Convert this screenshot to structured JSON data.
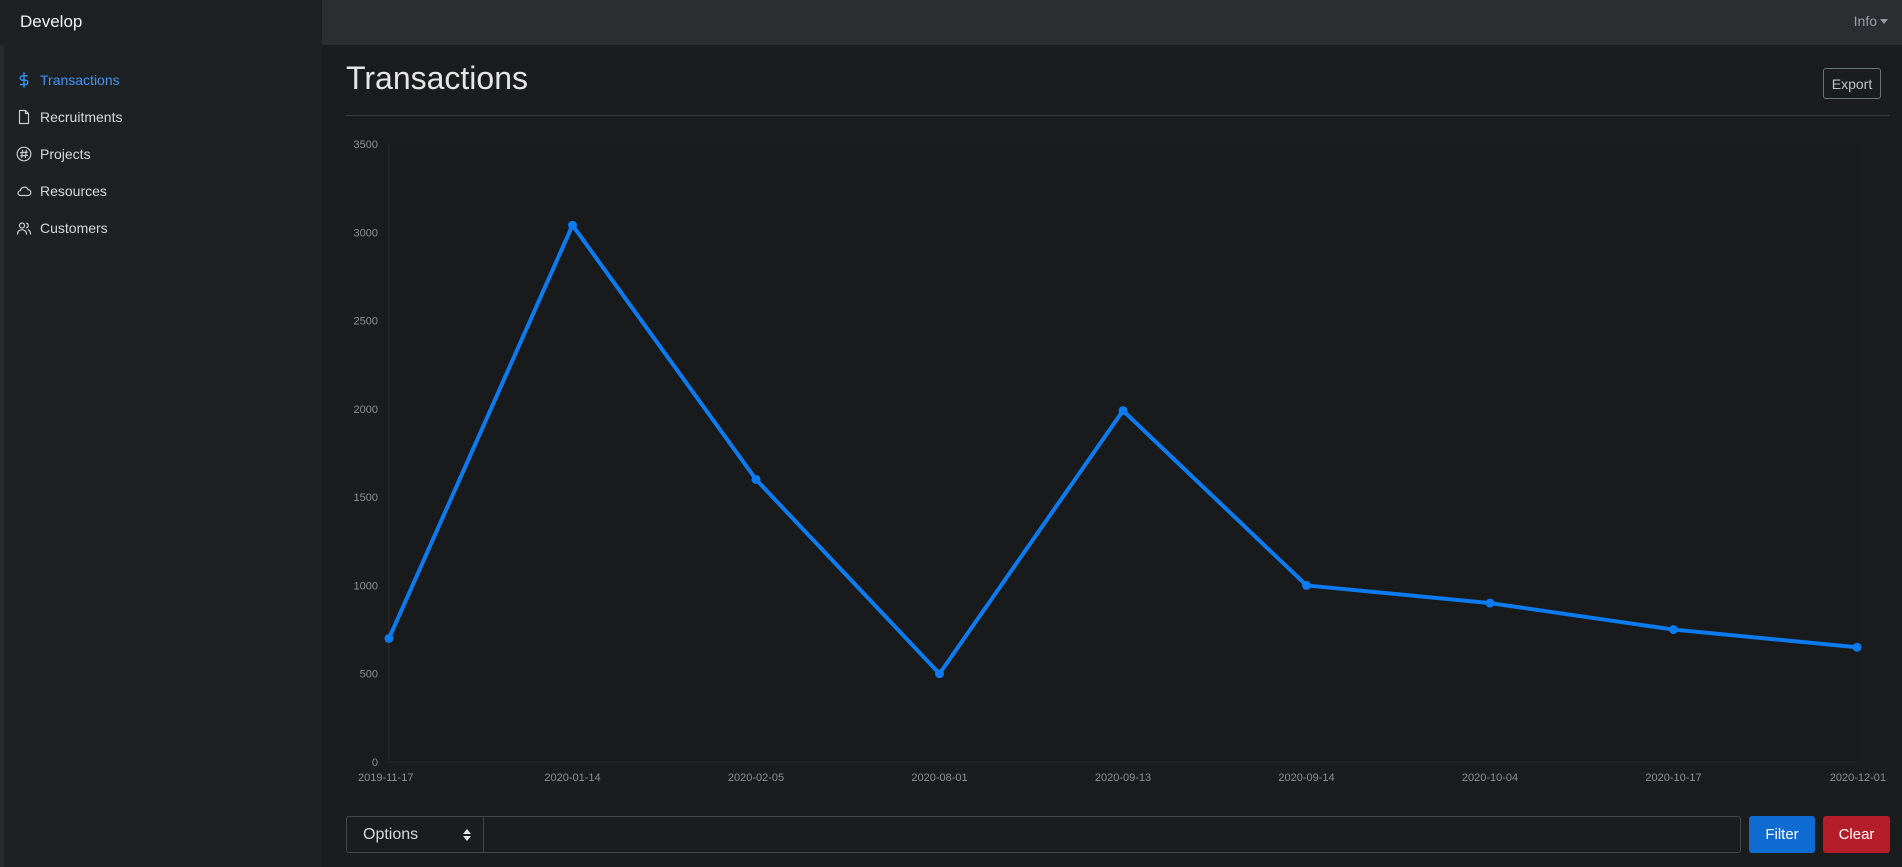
{
  "app": {
    "brand": "Develop",
    "info_menu_label": "Info"
  },
  "sidebar": {
    "items": [
      {
        "label": "Transactions",
        "icon": "dollar-icon",
        "active": true
      },
      {
        "label": "Recruitments",
        "icon": "file-icon",
        "active": false
      },
      {
        "label": "Projects",
        "icon": "slack-icon",
        "active": false
      },
      {
        "label": "Resources",
        "icon": "cloud-icon",
        "active": false
      },
      {
        "label": "Customers",
        "icon": "users-icon",
        "active": false
      }
    ]
  },
  "main": {
    "title": "Transactions",
    "export_label": "Export"
  },
  "filter": {
    "select_value": "Options",
    "input_value": "",
    "filter_label": "Filter",
    "clear_label": "Clear"
  },
  "colors": {
    "accent": "#0d7bf0",
    "active_nav": "#3d95f2",
    "filter_button": "#0d6bd1",
    "clear_button": "#b51d2a"
  },
  "chart_data": {
    "type": "line",
    "categories": [
      "2019-11-17",
      "2020-01-14",
      "2020-02-05",
      "2020-08-01",
      "2020-09-13",
      "2020-09-14",
      "2020-10-04",
      "2020-10-17",
      "2020-12-01"
    ],
    "values": [
      700,
      3040,
      1600,
      500,
      1990,
      1000,
      900,
      750,
      650
    ],
    "ylim": [
      0,
      3500
    ],
    "yticks": [
      0,
      500,
      1000,
      1500,
      2000,
      2500,
      3000,
      3500
    ],
    "title": "",
    "xlabel": "",
    "ylabel": "",
    "grid": false,
    "legend": "none"
  }
}
